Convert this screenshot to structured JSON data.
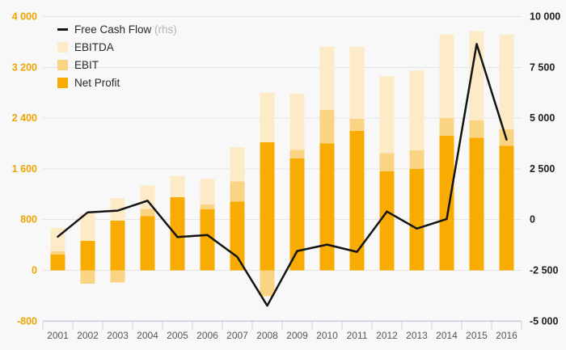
{
  "chart_data": {
    "type": "combo-bar-line",
    "title": "",
    "categories": [
      "2001",
      "2002",
      "2003",
      "2004",
      "2005",
      "2006",
      "2007",
      "2008",
      "2009",
      "2010",
      "2011",
      "2012",
      "2013",
      "2014",
      "2015",
      "2016"
    ],
    "series": [
      {
        "name": "EBITDA",
        "type": "bar",
        "axis": "left",
        "color": "#FDEBC8",
        "values": [
          670,
          900,
          1140,
          1340,
          1490,
          1440,
          1940,
          2800,
          2790,
          3530,
          3520,
          3060,
          3150,
          3720,
          3770,
          3720
        ]
      },
      {
        "name": "EBIT",
        "type": "bar",
        "axis": "left",
        "color": "#FBD483",
        "values": [
          300,
          -210,
          -190,
          970,
          1150,
          1040,
          1400,
          -410,
          1900,
          2530,
          2390,
          1850,
          1890,
          2400,
          2360,
          2220
        ]
      },
      {
        "name": "Net Profit",
        "type": "bar",
        "axis": "left",
        "color": "#F8AB00",
        "values": [
          250,
          465,
          785,
          855,
          1150,
          960,
          1080,
          2020,
          1765,
          2000,
          2200,
          1560,
          1600,
          2120,
          2090,
          1960
        ]
      },
      {
        "name": "Free Cash Flow",
        "type": "line",
        "axis": "right",
        "color": "#141414",
        "values": [
          -840,
          360,
          440,
          930,
          -860,
          -760,
          -1840,
          -4240,
          -1550,
          -1230,
          -1590,
          400,
          -440,
          30,
          8650,
          3940
        ]
      }
    ],
    "left_axis": {
      "min": -800,
      "max": 4000,
      "tick_values": [
        4000,
        3200,
        2400,
        1600,
        800,
        0,
        -800
      ],
      "tick_labels": [
        "4 000",
        "3 200",
        "2 400",
        "1 600",
        "800",
        "0",
        "-800"
      ],
      "label_color": "#F0A400"
    },
    "right_axis": {
      "min": -5000,
      "max": 10000,
      "tick_values": [
        10000,
        7500,
        5000,
        2500,
        0,
        -2500,
        -5000
      ],
      "tick_labels": [
        "10 000",
        "7 500",
        "5 000",
        "2 500",
        "0",
        "-2 500",
        "-5 000"
      ],
      "label_color": "#1E1E1E"
    },
    "legend_position": "top-left",
    "grid": true,
    "legend": [
      {
        "label": "Free Cash Flow",
        "suffix": " (rhs)",
        "swatch": "line",
        "color": "#141414"
      },
      {
        "label": "EBITDA",
        "suffix": "",
        "swatch": "box",
        "color": "#FDEBC8"
      },
      {
        "label": "EBIT",
        "suffix": "",
        "swatch": "box",
        "color": "#FBD483"
      },
      {
        "label": "Net Profit",
        "suffix": "",
        "swatch": "box",
        "color": "#F8AB00"
      }
    ]
  },
  "colors": {
    "background": "#F8F8F9",
    "gridline": "#E5E5E8",
    "axis_line": "#C6CFE0",
    "tick_mark": "#C6CFE0",
    "year_label": "#54565A",
    "legend_text": "#26282B",
    "rhs_suffix": "#B4B4B6"
  }
}
